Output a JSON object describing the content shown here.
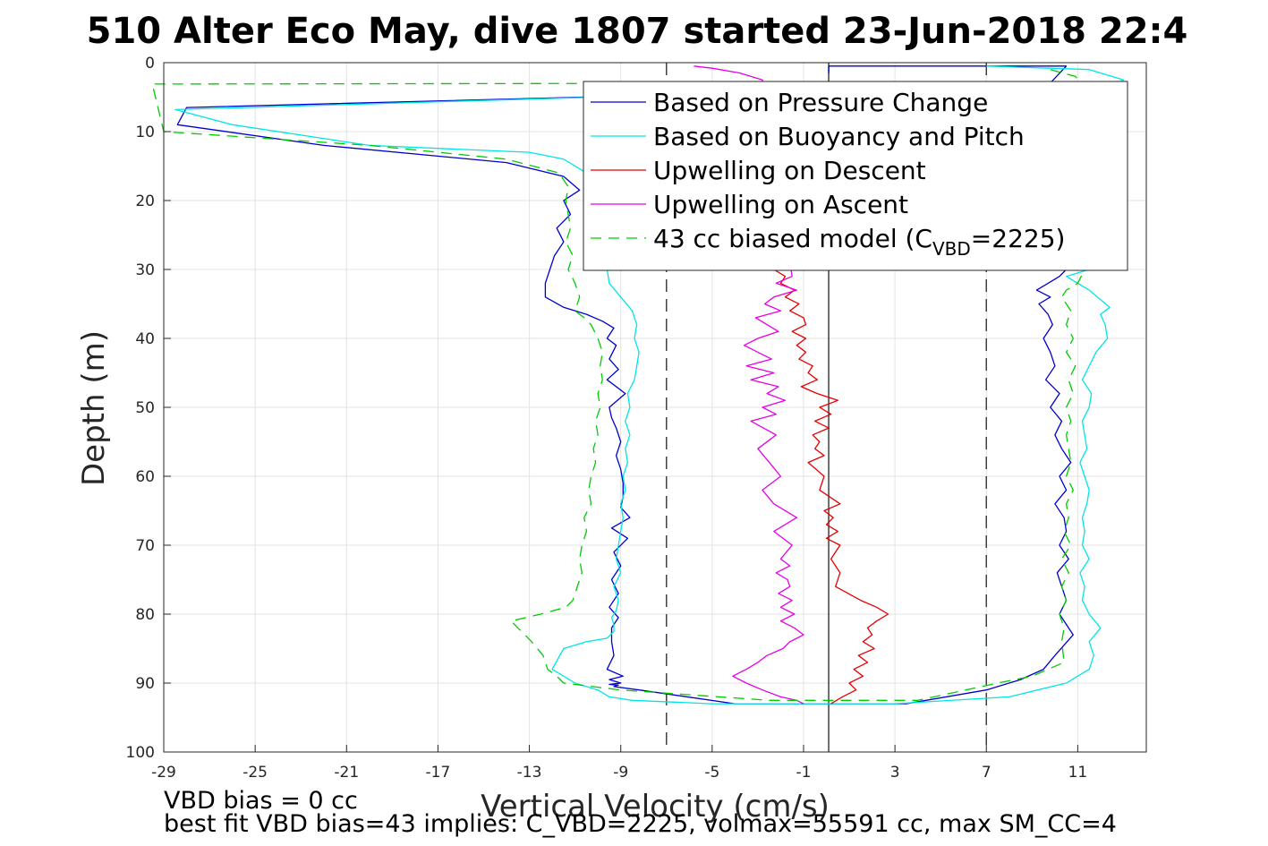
{
  "title": "510 Alter Eco May, dive 1807 started 23-Jun-2018 22:4",
  "notes": {
    "vbd_bias": "VBD bias = 0 cc",
    "best_fit": "best fit VBD bias=43 implies: C_VBD=2225, volmax=55591 cc, max SM_CC=4"
  },
  "chart_data": {
    "type": "line",
    "title": "510 Alter Eco May, dive 1807 started 23-Jun-2018 22:4",
    "xlabel": "Vertical Velocity (cm/s)",
    "ylabel": "Depth (m)",
    "xlim": [
      -29,
      14
    ],
    "ylim": [
      0,
      100
    ],
    "y_reversed": true,
    "grid": true,
    "x_ticks": [
      "-29",
      "-25",
      "-21",
      "-17",
      "-13",
      "-9",
      "-5",
      "-1",
      "3",
      "7",
      "11"
    ],
    "y_ticks": [
      "0",
      "10",
      "20",
      "30",
      "40",
      "50",
      "60",
      "70",
      "80",
      "90",
      "100"
    ],
    "legend_position": "top-right",
    "legend": [
      {
        "label": "Based on Pressure Change",
        "color": "#0000cc",
        "style": "solid"
      },
      {
        "label": "Based on Buoyancy and Pitch",
        "color": "#00e5e5",
        "style": "solid"
      },
      {
        "label": "Upwelling on Descent",
        "color": "#e50000",
        "style": "solid"
      },
      {
        "label": "Upwelling on Ascent",
        "color": "#e500e5",
        "style": "solid"
      },
      {
        "label_prefix": "43 cc biased model (C",
        "label_sub": "VBD",
        "label_suffix": "=2225)",
        "color": "#00cc00",
        "style": "dashed"
      }
    ],
    "reference_lines": [
      {
        "x": -7,
        "style": "dashed",
        "color": "#404040"
      },
      {
        "x": 0.1,
        "style": "solid",
        "color": "#404040"
      },
      {
        "x": 7,
        "style": "dashed",
        "color": "#404040"
      }
    ],
    "series": [
      {
        "name": "Based on Pressure Change",
        "color": "#0000cc",
        "dash": "",
        "x": [
          0,
          -5,
          -28,
          -28.4,
          -22,
          -14,
          -11.5,
          -10.8,
          -11.5,
          -11.2,
          -11.8,
          -11.5,
          -11.9,
          -12.1,
          -12.3,
          -12.3,
          -11.5,
          -10.5,
          -9.8,
          -9.3,
          -9.6,
          -9.2,
          -9.5,
          -9.1,
          -9.6,
          -8.8,
          -9.5,
          -9.4,
          -9.2,
          -9.0,
          -9.2,
          -9.0,
          -8.9,
          -8.9,
          -9.0,
          -8.6,
          -9.4,
          -8.7,
          -9.3,
          -9.0,
          -9.4,
          -9.1,
          -9.5,
          -9.1,
          -9.4,
          -9.4,
          -9.3,
          -9.6,
          -8.9,
          -9.5,
          -9.0,
          -9.5,
          -9.1,
          -9.3,
          -8.2,
          -4,
          3.5,
          7,
          7.5,
          8.5,
          9.5,
          10,
          10.8,
          10.2,
          10.5,
          10.3,
          10.1,
          10.6,
          10.2,
          10.5,
          10.4,
          10.0,
          10.5,
          10.2,
          10.7,
          10.3,
          10.0,
          10.3,
          9.8,
          10.2,
          9.6,
          10.0,
          9.8,
          9.5,
          9.9,
          9.7,
          9.3,
          9.8,
          9.2,
          9.7,
          10.2,
          10.5,
          11,
          8.8,
          7.8,
          9.5,
          10.5,
          0.1,
          0.1
        ],
        "y": [
          3,
          4.5,
          6.5,
          9,
          12,
          14.5,
          16.5,
          18.5,
          20,
          22,
          24,
          26,
          28,
          30,
          32,
          34,
          35.5,
          36.5,
          37.5,
          38.5,
          40,
          41,
          43,
          44.5,
          46,
          48,
          50,
          51.5,
          53,
          55,
          57,
          59,
          61,
          63,
          64.5,
          66,
          67.5,
          69,
          71,
          73,
          75,
          77,
          79,
          80.5,
          82,
          84,
          86,
          88,
          89,
          89.5,
          90,
          90.2,
          90.3,
          90.5,
          91,
          93,
          93,
          91,
          90.5,
          89.5,
          88,
          86,
          83,
          80,
          78,
          76,
          74,
          72,
          70,
          68,
          66,
          64,
          62,
          60,
          58,
          56,
          54,
          52,
          50,
          48,
          46,
          44,
          42,
          40,
          38,
          36.5,
          35,
          34,
          33,
          32,
          31,
          30,
          29.5,
          16,
          8,
          4,
          0.5,
          0.5,
          1.5
        ]
      },
      {
        "name": "Based on Buoyancy and Pitch",
        "color": "#00e5e5",
        "dash": "",
        "x": [
          0,
          -5,
          -28.5,
          -26,
          -20,
          -13,
          -11.5,
          -10.5,
          -10.2,
          -10.0,
          -9.8,
          -9.9,
          -9.7,
          -9.9,
          -9.6,
          -9.5,
          -9.0,
          -8.5,
          -8.3,
          -8.4,
          -8.2,
          -8.3,
          -8.4,
          -8.7,
          -8.6,
          -8.8,
          -8.6,
          -8.8,
          -8.7,
          -8.9,
          -8.8,
          -9.0,
          -8.9,
          -9.0,
          -9.1,
          -9.2,
          -9.0,
          -9.3,
          -9.1,
          -9.2,
          -9.4,
          -9.3,
          -9.3,
          -9.6,
          -10.5,
          -11.5,
          -12,
          -11.0,
          -10.0,
          -9.5,
          -8.5,
          -5,
          3,
          8,
          10.5,
          11.5,
          11.7,
          11.5,
          12.0,
          11.5,
          11.2,
          11.3,
          11.1,
          11.5,
          11.2,
          11.3,
          11.2,
          11.4,
          11.5,
          11.3,
          11.1,
          11.4,
          11.3,
          11.2,
          11.5,
          11.6,
          11.2,
          11.5,
          11.8,
          12.3,
          12.2,
          12.0,
          12.4,
          11.5,
          11.0,
          10.5,
          11.5,
          12.2,
          11.0,
          8,
          11.8,
          13.0,
          11.5,
          7
        ],
        "y": [
          3,
          4.5,
          6.8,
          9,
          12,
          13,
          14,
          16,
          18,
          20,
          22,
          24,
          26,
          28,
          30,
          32,
          34,
          36,
          38,
          40,
          42,
          44,
          46,
          48,
          50,
          52,
          54,
          56,
          58,
          60,
          62,
          64,
          66,
          68,
          70,
          72,
          74,
          76,
          78,
          79.5,
          80.5,
          81.5,
          82.5,
          83.5,
          84,
          85,
          88,
          90,
          91,
          92,
          92.5,
          93,
          93,
          92,
          90,
          88,
          86,
          84,
          82,
          80,
          78,
          76,
          74,
          72,
          70,
          68,
          66,
          64,
          62,
          60,
          58,
          56,
          54,
          52,
          50,
          48,
          46,
          44,
          42,
          40,
          38,
          36.5,
          35.5,
          33,
          32,
          31,
          30,
          28,
          20,
          12,
          5,
          2.5,
          1,
          0.5
        ]
      },
      {
        "name": "Upwelling on Descent",
        "color": "#e50000",
        "dash": "",
        "x": [
          -2.3,
          -1.8,
          -2.0,
          -1.4,
          -1.8,
          -1.2,
          -1.6,
          -1.0,
          -0.9,
          -1.5,
          -0.9,
          -1.3,
          -0.9,
          -1.2,
          -0.6,
          -0.8,
          -0.4,
          -1.1,
          -0.4,
          0.5,
          -0.3,
          0.2,
          -0.5,
          0.1,
          -0.6,
          -0.3,
          -0.5,
          -0.1,
          -0.8,
          -0.1,
          -0.3,
          0.6,
          -0.1,
          0.3,
          0.0,
          0.5,
          0.0,
          0.6,
          0.2,
          0.6,
          0.4,
          1.5,
          2.2,
          2.7,
          2.2,
          1.8,
          2.0,
          1.6,
          2.1,
          1.4,
          1.8,
          1.2,
          1.6,
          1.0,
          1.3,
          0.7,
          0.2
        ],
        "y": [
          30,
          31,
          32,
          33,
          34,
          35,
          36,
          37,
          38,
          39,
          40,
          41,
          42,
          43,
          44,
          45,
          46,
          47,
          48,
          49,
          50,
          51,
          52,
          53,
          54,
          55,
          56,
          57,
          58,
          60,
          62,
          64,
          65,
          66,
          67,
          68,
          69,
          70,
          72,
          74,
          76,
          78,
          79,
          80,
          81,
          82,
          83,
          84,
          85,
          86,
          87,
          88,
          89,
          90,
          91,
          92,
          93
        ]
      },
      {
        "name": "Upwelling on Ascent",
        "color": "#e500e5",
        "dash": "",
        "x": [
          -5.8,
          -5.0,
          -3.8,
          -2.8,
          -1.5,
          -2.2,
          -1.3,
          -2.3,
          -2.7,
          -2.0,
          -3.1,
          -2.6,
          -2.1,
          -3.0,
          -3.6,
          -3.0,
          -2.4,
          -3.5,
          -2.3,
          -3.3,
          -2.1,
          -2.6,
          -1.8,
          -2.8,
          -2.2,
          -3.3,
          -2.2,
          -3.0,
          -2.5,
          -2.0,
          -2.8,
          -2.3,
          -1.3,
          -2.3,
          -1.5,
          -2.0,
          -1.6,
          -2.2,
          -1.7,
          -1.6,
          -2.1,
          -1.5,
          -2.0,
          -1.4,
          -2.0,
          -1.4,
          -1.0,
          -1.6,
          -1.9,
          -2.6,
          -3.0,
          -3.5,
          -4.1,
          -3.5,
          -2.8,
          -2.0,
          -1.3,
          -1.0
        ],
        "y": [
          0.5,
          0.8,
          1.5,
          2.5,
          31,
          32,
          33,
          34,
          35,
          36,
          37,
          38,
          39,
          40,
          41,
          42,
          43,
          44,
          45,
          46,
          47,
          48,
          49,
          50,
          51,
          52,
          54,
          56,
          58,
          60,
          62,
          64,
          66,
          68,
          70,
          72,
          73,
          74,
          75,
          76,
          77,
          78,
          79,
          80,
          81,
          82,
          83,
          84,
          85,
          86,
          87,
          88,
          89,
          90,
          91,
          92,
          92.5,
          93
        ]
      },
      {
        "name": "43 cc biased model (C_VBD=2225)",
        "color": "#00cc00",
        "dash": "12,8",
        "x": [
          -7,
          -29.5,
          -29.0,
          -20,
          -14,
          -11.7,
          -11.3,
          -11.4,
          -11.3,
          -11.2,
          -11.4,
          -11.1,
          -11.3,
          -11.0,
          -10.8,
          -11.0,
          -10.6,
          -10.3,
          -10.0,
          -9.8,
          -9.9,
          -9.8,
          -10.0,
          -9.9,
          -10.1,
          -10.0,
          -10.2,
          -10.1,
          -10.3,
          -10.4,
          -10.3,
          -10.6,
          -10.5,
          -10.7,
          -10.8,
          -10.7,
          -10.9,
          -11.1,
          -11.4,
          -12.5,
          -13.8,
          -13.5,
          -12.9,
          -12.4,
          -12.2,
          -11.8,
          -11.5,
          -9,
          -2.5,
          4,
          7.5,
          9,
          10.4,
          10.3,
          10.4,
          10.2,
          10.5,
          10.3,
          10.6,
          10.3,
          10.7,
          10.4,
          10.6,
          10.5,
          10.8,
          10.5,
          10.7,
          10.6,
          10.5,
          10.7,
          10.5,
          10.8,
          10.6,
          10.9,
          10.5,
          10.8,
          10.5,
          10.7,
          10.3,
          10.5,
          11.0,
          11.3,
          11.2,
          11.5,
          11.8,
          11.4,
          10.9,
          9.8
        ],
        "y": [
          3,
          3.1,
          10,
          12,
          14,
          16,
          18,
          20,
          22,
          24,
          26,
          28,
          30,
          32,
          34,
          36,
          37,
          38,
          40,
          42,
          44,
          46,
          48,
          50,
          52,
          54,
          56,
          58,
          60,
          62,
          64,
          66,
          68,
          70,
          72,
          74,
          76,
          78,
          79,
          80,
          81,
          82,
          84,
          86,
          88,
          89,
          90,
          91,
          92.5,
          92.5,
          90,
          89,
          87,
          84,
          82,
          80,
          78,
          76,
          74,
          72,
          70,
          68,
          66,
          64,
          62,
          60,
          58,
          56,
          54,
          52,
          50,
          48,
          46,
          44,
          42,
          40,
          38,
          36,
          34,
          33,
          32,
          30,
          28,
          20,
          10,
          4,
          2,
          1
        ]
      }
    ]
  }
}
